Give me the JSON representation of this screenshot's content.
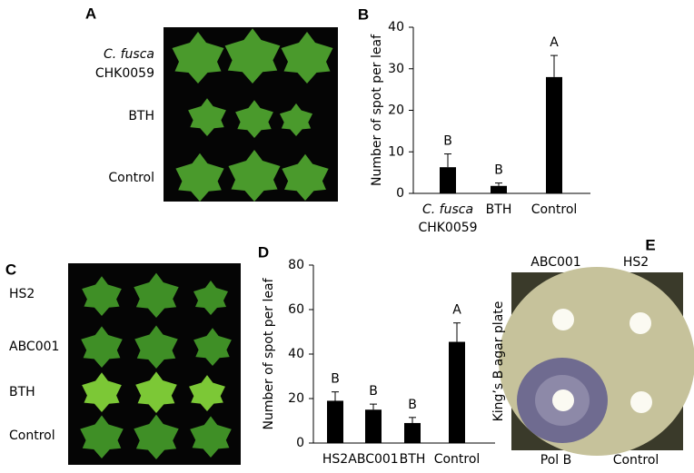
{
  "panels": [
    {
      "letter": "A",
      "labels": [
        [
          "C. fusca",
          "CHK0059"
        ],
        "BTH",
        "Control"
      ]
    },
    {
      "letter": "C",
      "labels": [
        "HS2",
        "ABC001",
        "BTH",
        "Control"
      ]
    },
    {
      "letter": "E",
      "top_labels": [
        "ABC001",
        "HS2"
      ],
      "bottom_labels": [
        "Pol B",
        "Control"
      ],
      "side_label": "King’s B agar plate"
    }
  ],
  "chart_data": [
    {
      "type": "bar",
      "panel": "B",
      "y_label": "Number of spot per leaf",
      "categories": [
        [
          "C. fusca",
          "CHK0059"
        ],
        "BTH",
        "Control"
      ],
      "values": [
        6.3,
        1.8,
        28
      ],
      "errors": [
        3.2,
        0.7,
        5.2
      ],
      "annotations": [
        "B",
        "B",
        "A"
      ],
      "color": "#000000",
      "ylim": [
        0,
        40
      ],
      "yticks": [
        0,
        10,
        20,
        30,
        40
      ]
    },
    {
      "type": "bar",
      "panel": "D",
      "y_label": "Number of spot per leaf",
      "categories": [
        "HS2",
        "ABC001",
        "BTH",
        "Control"
      ],
      "values": [
        19,
        15,
        9,
        45.5
      ],
      "errors": [
        4,
        2.5,
        2.5,
        8.5
      ],
      "annotations": [
        "B",
        "B",
        "B",
        "A"
      ],
      "color": "#000000",
      "ylim": [
        0,
        80
      ],
      "yticks": [
        0,
        20,
        40,
        60,
        80
      ]
    }
  ]
}
